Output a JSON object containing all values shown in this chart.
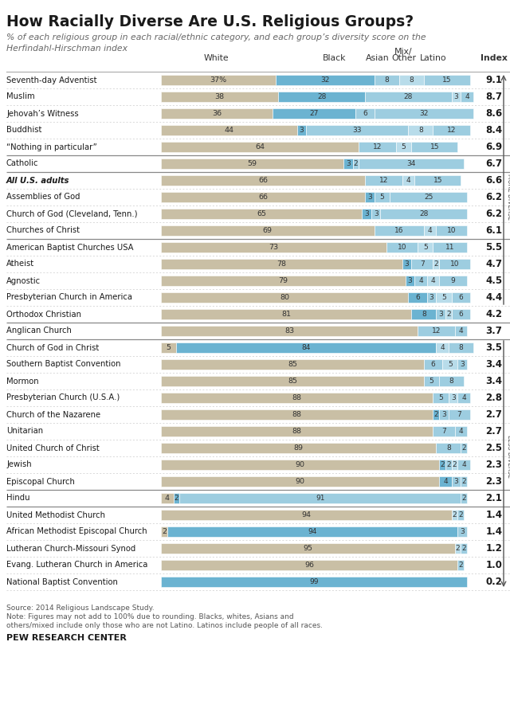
{
  "title": "How Racially Diverse Are U.S. Religious Groups?",
  "subtitle1": "% of each religious group in each racial/ethnic category, and each group’s diversity score on the",
  "subtitle2": "Herfindahl-Hirschman index",
  "groups": [
    {
      "name": "Seventh-day Adventist",
      "white": 37,
      "black": 32,
      "asian": 8,
      "mix": 8,
      "latino": 15,
      "index": "9.1",
      "bold": false,
      "pct": true
    },
    {
      "name": "Muslim",
      "white": 38,
      "black": 28,
      "asian": 28,
      "mix": 3,
      "latino": 4,
      "index": "8.7",
      "bold": false,
      "pct": false
    },
    {
      "name": "Jehovah’s Witness",
      "white": 36,
      "black": 27,
      "asian": 6,
      "mix": 0,
      "latino": 32,
      "index": "8.6",
      "bold": false,
      "pct": false
    },
    {
      "name": "Buddhist",
      "white": 44,
      "black": 3,
      "asian": 33,
      "mix": 8,
      "latino": 12,
      "index": "8.4",
      "bold": false,
      "pct": false
    },
    {
      "name": "“Nothing in particular”",
      "white": 64,
      "black": 0,
      "asian": 12,
      "mix": 5,
      "latino": 15,
      "index": "6.9",
      "bold": false,
      "pct": false
    },
    {
      "name": "Catholic",
      "white": 59,
      "black": 3,
      "asian": 2,
      "mix": 0,
      "latino": 34,
      "index": "6.7",
      "bold": false,
      "pct": false
    },
    {
      "name": "All U.S. adults",
      "white": 66,
      "black": 0,
      "asian": 12,
      "mix": 4,
      "latino": 15,
      "index": "6.6",
      "bold": true,
      "pct": false
    },
    {
      "name": "Assemblies of God",
      "white": 66,
      "black": 3,
      "asian": 5,
      "mix": 0,
      "latino": 25,
      "index": "6.2",
      "bold": false,
      "pct": false
    },
    {
      "name": "Church of God (Cleveland, Tenn.)",
      "white": 65,
      "black": 3,
      "asian": 3,
      "mix": 0,
      "latino": 28,
      "index": "6.2",
      "bold": false,
      "pct": false
    },
    {
      "name": "Churches of Christ",
      "white": 69,
      "black": 0,
      "asian": 16,
      "mix": 4,
      "latino": 10,
      "index": "6.1",
      "bold": false,
      "pct": false
    },
    {
      "name": "American Baptist Churches USA",
      "white": 73,
      "black": 0,
      "asian": 10,
      "mix": 5,
      "latino": 11,
      "index": "5.5",
      "bold": false,
      "pct": false
    },
    {
      "name": "Atheist",
      "white": 78,
      "black": 3,
      "asian": 7,
      "mix": 2,
      "latino": 10,
      "index": "4.7",
      "bold": false,
      "pct": false
    },
    {
      "name": "Agnostic",
      "white": 79,
      "black": 3,
      "asian": 4,
      "mix": 4,
      "latino": 9,
      "index": "4.5",
      "bold": false,
      "pct": false
    },
    {
      "name": "Presbyterian Church in America",
      "white": 80,
      "black": 6,
      "asian": 3,
      "mix": 5,
      "latino": 6,
      "index": "4.4",
      "bold": false,
      "pct": false
    },
    {
      "name": "Orthodox Christian",
      "white": 81,
      "black": 8,
      "asian": 3,
      "mix": 2,
      "latino": 6,
      "index": "4.2",
      "bold": false,
      "pct": false
    },
    {
      "name": "Anglican Church",
      "white": 83,
      "black": 0,
      "asian": 12,
      "mix": 0,
      "latino": 4,
      "index": "3.7",
      "bold": false,
      "pct": false
    },
    {
      "name": "Church of God in Christ",
      "white": 5,
      "black": 84,
      "asian": 0,
      "mix": 4,
      "latino": 8,
      "index": "3.5",
      "bold": false,
      "pct": false
    },
    {
      "name": "Southern Baptist Convention",
      "white": 85,
      "black": 0,
      "asian": 6,
      "mix": 5,
      "latino": 3,
      "index": "3.4",
      "bold": false,
      "pct": false
    },
    {
      "name": "Mormon",
      "white": 85,
      "black": 0,
      "asian": 5,
      "mix": 0,
      "latino": 8,
      "index": "3.4",
      "bold": false,
      "pct": false
    },
    {
      "name": "Presbyterian Church (U.S.A.)",
      "white": 88,
      "black": 0,
      "asian": 5,
      "mix": 3,
      "latino": 4,
      "index": "2.8",
      "bold": false,
      "pct": false
    },
    {
      "name": "Church of the Nazarene",
      "white": 88,
      "black": 2,
      "asian": 3,
      "mix": 0,
      "latino": 7,
      "index": "2.7",
      "bold": false,
      "pct": false
    },
    {
      "name": "Unitarian",
      "white": 88,
      "black": 0,
      "asian": 7,
      "mix": 0,
      "latino": 4,
      "index": "2.7",
      "bold": false,
      "pct": false
    },
    {
      "name": "United Church of Christ",
      "white": 89,
      "black": 0,
      "asian": 8,
      "mix": 0,
      "latino": 2,
      "index": "2.5",
      "bold": false,
      "pct": false
    },
    {
      "name": "Jewish",
      "white": 90,
      "black": 2,
      "asian": 2,
      "mix": 2,
      "latino": 4,
      "index": "2.3",
      "bold": false,
      "pct": false
    },
    {
      "name": "Episcopal Church",
      "white": 90,
      "black": 4,
      "asian": 3,
      "mix": 0,
      "latino": 2,
      "index": "2.3",
      "bold": false,
      "pct": false
    },
    {
      "name": "Hindu",
      "white": 4,
      "black": 2,
      "asian": 91,
      "mix": 0,
      "latino": 2,
      "index": "2.1",
      "bold": false,
      "pct": false
    },
    {
      "name": "United Methodist Church",
      "white": 94,
      "black": 0,
      "asian": 0,
      "mix": 2,
      "latino": 2,
      "index": "1.4",
      "bold": false,
      "pct": false
    },
    {
      "name": "African Methodist Episcopal Church",
      "white": 2,
      "black": 94,
      "asian": 0,
      "mix": 0,
      "latino": 3,
      "index": "1.4",
      "bold": false,
      "pct": false
    },
    {
      "name": "Lutheran Church-Missouri Synod",
      "white": 95,
      "black": 0,
      "asian": 0,
      "mix": 2,
      "latino": 2,
      "index": "1.2",
      "bold": false,
      "pct": false
    },
    {
      "name": "Evang. Lutheran Church in America",
      "white": 96,
      "black": 0,
      "asian": 0,
      "mix": 0,
      "latino": 2,
      "index": "1.0",
      "bold": false,
      "pct": false
    },
    {
      "name": "National Baptist Convention",
      "white": 0,
      "black": 99,
      "asian": 0,
      "mix": 0,
      "latino": 0,
      "index": "0.2",
      "bold": false,
      "pct": false
    }
  ],
  "color_white": "#c9bfa5",
  "color_black": "#6bb3d1",
  "color_asian": "#9dcde0",
  "color_mix": "#b8dcea",
  "color_latino": "#9dcde0",
  "dividers_thick": [
    4,
    5,
    9,
    14,
    15,
    24,
    25
  ],
  "footnote": "Source: 2014 Religious Landscape Study.\nNote: Figures may not add to 100% due to rounding. Blacks, whites, Asians and\nothers/mixed include only those who are not Latino. Latinos include people of all races.",
  "pew_label": "PEW RESEARCH CENTER"
}
